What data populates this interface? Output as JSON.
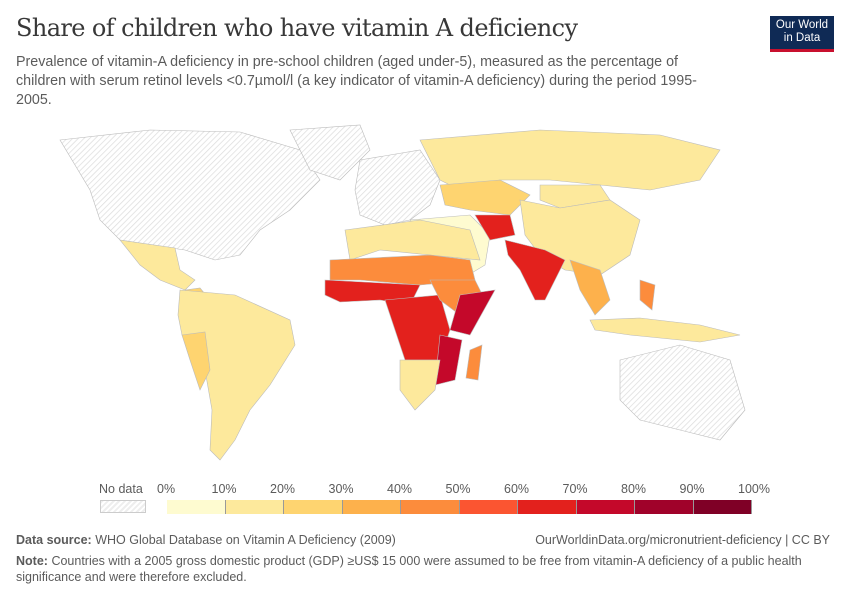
{
  "header": {
    "title": "Share of children who have vitamin A deficiency",
    "subtitle": "Prevalence of vitamin-A deficiency in pre-school children (aged under-5), measured as the percentage of children with serum retinol levels <0.7µmol/l (a key indicator of vitamin-A deficiency) during the period 1995-2005.",
    "logo": "Our World in Data"
  },
  "legend": {
    "no_data_label": "No data",
    "ticks": [
      "0%",
      "10%",
      "20%",
      "30%",
      "40%",
      "50%",
      "60%",
      "70%",
      "80%",
      "90%",
      "100%"
    ],
    "colors": [
      "#fefbd0",
      "#fde99c",
      "#fed470",
      "#fdb14c",
      "#fc8c3c",
      "#fb5531",
      "#e3211d",
      "#c4082a",
      "#a0022a",
      "#7f0026"
    ]
  },
  "map_fills": {
    "north_america": null,
    "greenland": null,
    "mexico": 15,
    "central_america": 20,
    "south_america": 12,
    "andes": 25,
    "europe": null,
    "russia": 15,
    "central_asia": 20,
    "china": 10,
    "mongolia": 15,
    "middle_east": 8,
    "afghanistan": 65,
    "india": 62,
    "southeast_asia": 35,
    "philippines": 40,
    "indonesia": 15,
    "australia": null,
    "north_africa": 10,
    "sahel": 45,
    "west_africa": 60,
    "central_africa": 60,
    "east_africa": 45,
    "somalia_kenya": 75,
    "southern_africa": 15,
    "madagascar": 40,
    "mozambique": 70
  },
  "footer": {
    "source_label": "Data source:",
    "source": "WHO Global Database on Vitamin A Deficiency (2009)",
    "url": "OurWorldinData.org/micronutrient-deficiency | CC BY",
    "note_label": "Note:",
    "note": "Countries with a 2005 gross domestic product (GDP) ≥US$ 15 000 were assumed to be free from vitamin-A deficiency of a public health significance and were therefore excluded."
  }
}
